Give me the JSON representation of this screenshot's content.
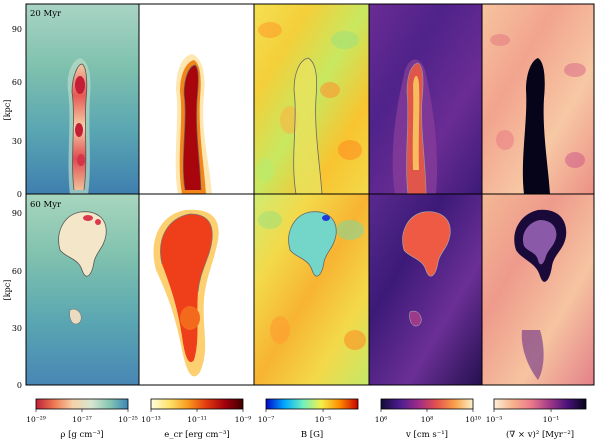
{
  "axis": {
    "ylabel": "[kpc]",
    "yticks": [
      "0",
      "30",
      "60",
      "90"
    ]
  },
  "rows": [
    {
      "time_label": "20 Myr"
    },
    {
      "time_label": "60 Myr"
    }
  ],
  "colorbars": [
    {
      "label": "ρ [g cm⁻³]",
      "ticks": [
        "10⁻²⁹",
        "10⁻²⁷",
        "10⁻²⁵"
      ],
      "stops": [
        "#c0203a",
        "#ef7a52",
        "#f6d2a8",
        "#d8e6d0",
        "#86c7b4",
        "#3b86b4"
      ]
    },
    {
      "label": "e_cr [erg cm⁻³]",
      "ticks": [
        "10⁻¹³",
        "10⁻¹¹",
        "10⁻⁹"
      ],
      "stops": [
        "#ffffe0",
        "#fee36a",
        "#f99b1e",
        "#e23a10",
        "#a2000c",
        "#3d0000"
      ]
    },
    {
      "label": "B [G]",
      "ticks": [
        "10⁻⁷",
        "10⁻⁵"
      ],
      "stops": [
        "#0008c8",
        "#00a8ff",
        "#6ef0c0",
        "#f4f04a",
        "#ff8c00",
        "#c80000"
      ]
    },
    {
      "label": "v [cm s⁻¹]",
      "ticks": [
        "10⁶",
        "10⁸",
        "10¹⁰"
      ],
      "stops": [
        "#120a38",
        "#4a1c8c",
        "#9a2b8a",
        "#e2504e",
        "#f9a04a",
        "#fdf0c8"
      ]
    },
    {
      "label": "(∇ × v)² [Myr⁻²]",
      "ticks": [
        "10⁻³",
        "10⁻¹"
      ],
      "stops": [
        "#fcf0dc",
        "#f7b48c",
        "#ec7a8a",
        "#a43a8a",
        "#48127a",
        "#050418"
      ]
    }
  ],
  "colors": {
    "rho_bg": "#7fc1ae",
    "rho_lobe": "#d6293a",
    "rho_shell": "#f5e4c5",
    "ecr_bg": "#ffffff",
    "ecr_lobe": "#b0090e",
    "b_bg": "#f3d94a",
    "b_lobe": "#6fd0c8",
    "v_bg": "#5a2a8e",
    "v_lobe": "#f06a42",
    "vort_bg": "#f5b08e",
    "vort_lobe": "#050418"
  }
}
